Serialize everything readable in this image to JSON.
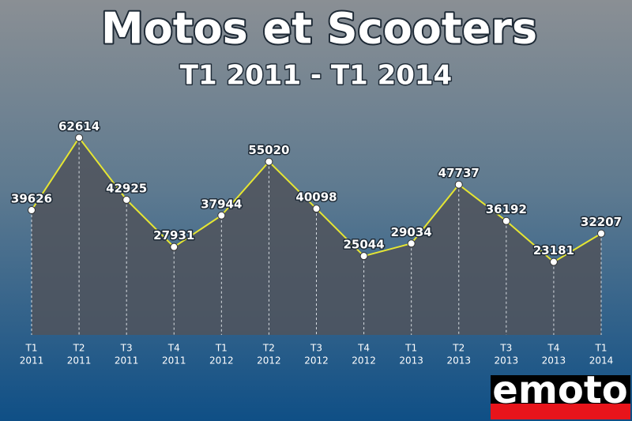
{
  "chart_data": {
    "type": "line",
    "title": "Motos et Scooters",
    "subtitle": "T1 2011 - T1 2014",
    "categories": [
      [
        "T1",
        "2011"
      ],
      [
        "T2",
        "2011"
      ],
      [
        "T3",
        "2011"
      ],
      [
        "T4",
        "2011"
      ],
      [
        "T1",
        "2012"
      ],
      [
        "T2",
        "2012"
      ],
      [
        "T3",
        "2012"
      ],
      [
        "T4",
        "2012"
      ],
      [
        "T1",
        "2013"
      ],
      [
        "T2",
        "2013"
      ],
      [
        "T3",
        "2013"
      ],
      [
        "T4",
        "2013"
      ],
      [
        "T1",
        "2014"
      ]
    ],
    "series": [
      {
        "color": "#e6e632",
        "values": [
          39626,
          62614,
          42925,
          27931,
          37944,
          55020,
          40098,
          25044,
          29034,
          47737,
          36192,
          23181,
          32207
        ]
      }
    ],
    "ylim": [
      0,
      70000
    ]
  },
  "logo": "emoto"
}
